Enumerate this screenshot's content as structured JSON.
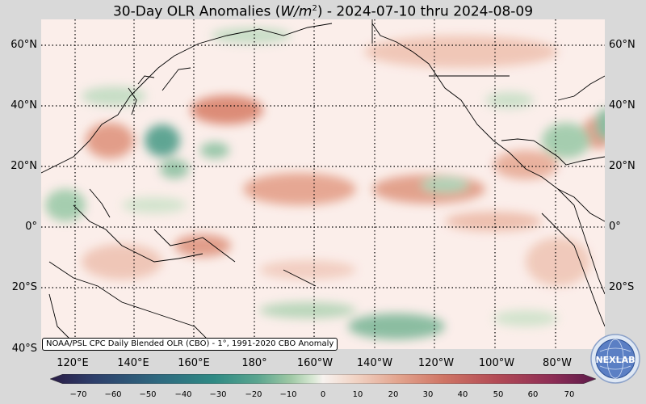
{
  "title": {
    "prefix": "30-Day OLR Anomalies (",
    "unit_var": "W/m",
    "unit_exp": "2",
    "suffix": ") - 2024-07-10 thru 2024-08-09"
  },
  "lat_labels": [
    "60°N",
    "40°N",
    "20°N",
    "0°",
    "20°S",
    "40°S"
  ],
  "lon_labels": [
    "120°E",
    "140°E",
    "160°E",
    "180°",
    "160°W",
    "140°W",
    "120°W",
    "100°W",
    "80°W"
  ],
  "credit": "NOAA/PSL CPC Daily Blended OLR (CBO) - 1°, 1991-2020 CBO Anomaly",
  "colorbar": {
    "ticks": [
      "−70",
      "−60",
      "−50",
      "−40",
      "−30",
      "−20",
      "−10",
      "0",
      "10",
      "20",
      "30",
      "40",
      "50",
      "60",
      "70"
    ],
    "colors": [
      "#2a1c45",
      "#2e3f6b",
      "#2f6a80",
      "#2f8a84",
      "#5aa58f",
      "#9ec8a4",
      "#d6e7d2",
      "#f7f2ef",
      "#f1d3c4",
      "#e2a38d",
      "#cf7565",
      "#b24a55",
      "#8d2d55",
      "#5c1a4a"
    ]
  },
  "logo": {
    "text": "NEXLAB"
  },
  "colors": {
    "positive": "#d9826c",
    "negative": "#6fae8c",
    "neutral": "#fbeeea"
  }
}
